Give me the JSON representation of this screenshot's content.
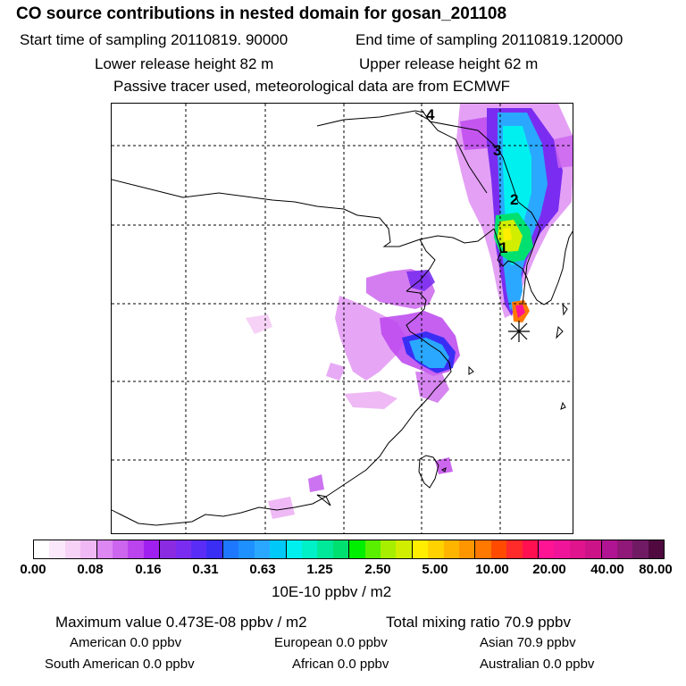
{
  "header": {
    "title": "CO  source contributions in nested domain for gosan_201108",
    "start_label": "Start time of sampling 20110819. 90000",
    "end_label": "End time of sampling 20110819.120000",
    "lower_label": "Lower release height   82 m",
    "upper_label": "Upper release height   62 m",
    "note": "Passive tracer used, meteorological data are from ECMWF"
  },
  "map": {
    "trajectory_labels": [
      "4",
      "3",
      "2",
      "1"
    ],
    "receptor_marker": "asterisk"
  },
  "colorbar": {
    "tick_labels": [
      "0.00",
      "0.08",
      "0.16",
      "0.31",
      "0.63",
      "1.25",
      "2.50",
      "5.00",
      "10.00",
      "20.00",
      "40.00",
      "80.00"
    ],
    "colors": [
      "#ffffff",
      "#fbe8fb",
      "#f6d2f6",
      "#efb9f5",
      "#dd88f2",
      "#cc66ee",
      "#bb44ee",
      "#a020f0",
      "#8a2be2",
      "#7a2df0",
      "#5a2df7",
      "#3a2ef5",
      "#1e78ff",
      "#1e90ff",
      "#2aa8ff",
      "#00c8f8",
      "#00f0f0",
      "#00f0c8",
      "#00e89a",
      "#00e070",
      "#00ee00",
      "#5aee00",
      "#a8ee00",
      "#d2ee00",
      "#ffee00",
      "#ffd200",
      "#ffb400",
      "#ff9600",
      "#ff7800",
      "#ff4a00",
      "#ff2a2a",
      "#ff1050",
      "#ff1493",
      "#f0149a",
      "#e0148c",
      "#cc1488",
      "#b01492",
      "#901878",
      "#701a64",
      "#500a40"
    ],
    "unit": "10E-10 ppbv / m2"
  },
  "summary": {
    "max_label": "Maximum value  0.473E-08 ppbv / m2",
    "total_label": "Total mixing ratio      70.9 ppbv",
    "american": "American          0.0 ppbv",
    "european": "European          0.0 ppbv",
    "asian": "Asian       70.9 ppbv",
    "south_american": "South American          0.0 ppbv",
    "african": "African          0.0 ppbv",
    "australian": "Australian          0.0 ppbv"
  }
}
